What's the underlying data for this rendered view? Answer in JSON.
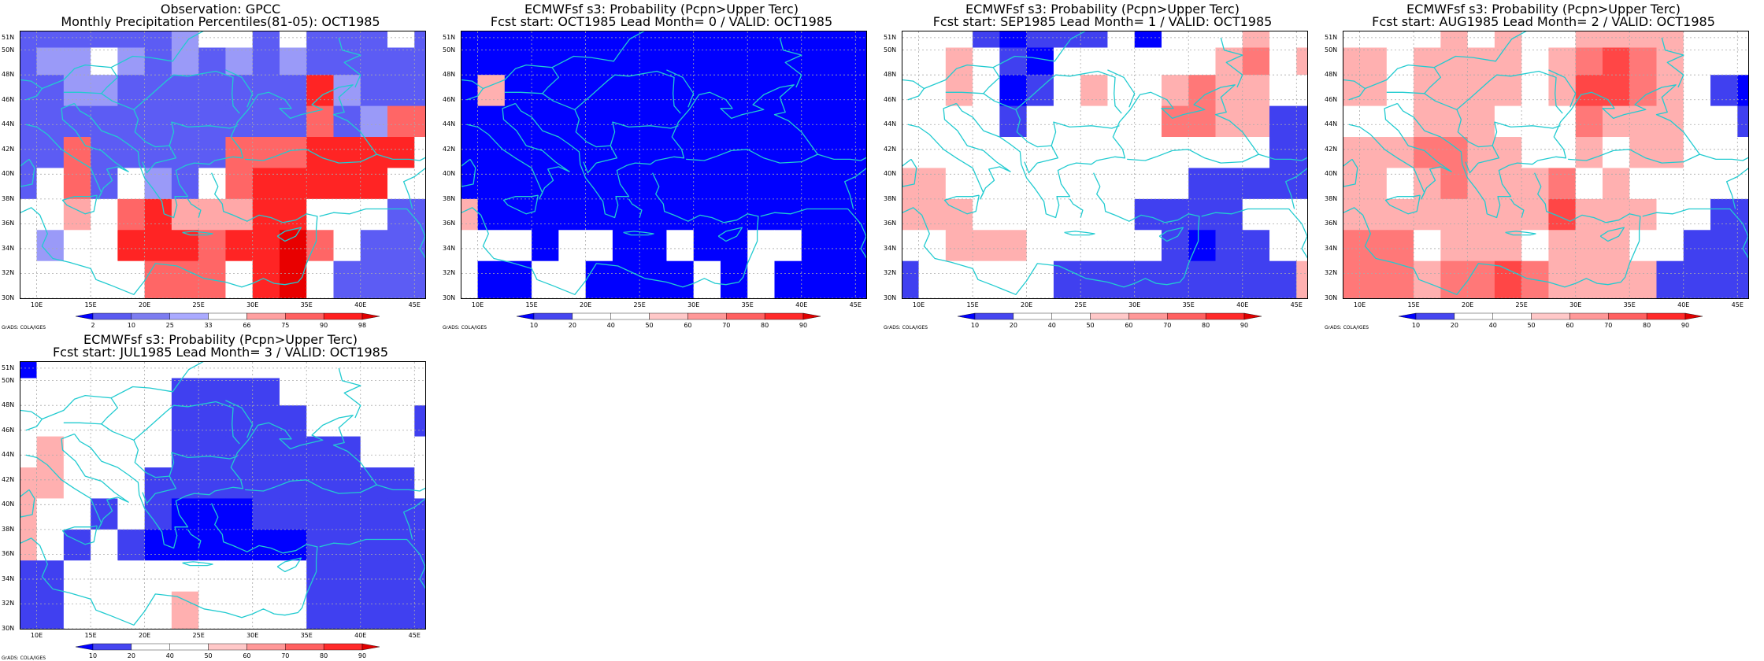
{
  "figure": {
    "grads_credit": "GrADS: COLA/IGES",
    "lat_labels": [
      "51N",
      "50N",
      "48N",
      "46N",
      "44N",
      "42N",
      "40N",
      "38N",
      "36N",
      "34N",
      "32N",
      "30N"
    ],
    "lon_labels": [
      "10E",
      "15E",
      "20E",
      "25E",
      "30E",
      "35E",
      "40E",
      "45E"
    ],
    "coast_color": "#22cbd0"
  },
  "chart_data": [
    {
      "type": "heatmap",
      "title": "Observation: GPCC",
      "subtitle": "Monthly Precipitation Percentiles(81-05): OCT1985",
      "x": [
        8.75,
        11.25,
        13.75,
        16.25,
        18.75,
        21.25,
        23.75,
        26.25,
        28.75,
        31.25,
        33.75,
        36.25,
        38.75,
        41.25,
        43.75,
        46.25
      ],
      "y": [
        50.75,
        49.25,
        46.75,
        44.25,
        41.75,
        39.25,
        36.75,
        34.25,
        31.75
      ],
      "xlim": [
        8.5,
        46.0
      ],
      "ylim": [
        30.0,
        51.5
      ],
      "colorbar": {
        "labels": [
          "2",
          "10",
          "25",
          "33",
          "66",
          "75",
          "90",
          "98"
        ],
        "colors": [
          "#0000ff",
          "#5a5af0",
          "#7c7cf0",
          "#aaaaff",
          "#ffffff",
          "#ffa0a0",
          "#ff6060",
          "#ff2020",
          "#e00000"
        ]
      },
      "values": [
        [
          10,
          10,
          10,
          10,
          20,
          20,
          30,
          33,
          40,
          20,
          33,
          20,
          10,
          20,
          33,
          10
        ],
        [
          10,
          30,
          30,
          33,
          30,
          20,
          30,
          20,
          30,
          20,
          30,
          20,
          20,
          20,
          20,
          10
        ],
        [
          20,
          10,
          30,
          30,
          10,
          20,
          20,
          20,
          20,
          20,
          20,
          95,
          30,
          20,
          20,
          10
        ],
        [
          20,
          20,
          10,
          20,
          20,
          20,
          20,
          20,
          20,
          20,
          20,
          78,
          20,
          30,
          80,
          80
        ],
        [
          20,
          20,
          80,
          20,
          20,
          20,
          20,
          20,
          80,
          80,
          80,
          90,
          90,
          90,
          90,
          50
        ],
        [
          20,
          50,
          80,
          20,
          50,
          30,
          20,
          50,
          80,
          90,
          90,
          90,
          90,
          90,
          50,
          50
        ],
        [
          50,
          50,
          70,
          50,
          80,
          95,
          70,
          70,
          70,
          95,
          95,
          50,
          50,
          50,
          20,
          20
        ],
        [
          50,
          30,
          50,
          50,
          95,
          90,
          90,
          85,
          90,
          95,
          99,
          85,
          50,
          10,
          10,
          10
        ],
        [
          50,
          50,
          50,
          50,
          50,
          85,
          85,
          80,
          50,
          95,
          99,
          50,
          10,
          10,
          10,
          10
        ]
      ]
    },
    {
      "type": "heatmap",
      "title": "ECMWFsf s3: Probability (Pcpn>Upper Terc)",
      "subtitle": "Fcst start: OCT1985  Lead Month= 0 / VALID: OCT1985",
      "x": [
        8.75,
        11.25,
        13.75,
        16.25,
        18.75,
        21.25,
        23.75,
        26.25,
        28.75,
        31.25,
        33.75,
        36.25,
        38.75,
        41.25,
        43.75,
        46.25
      ],
      "y": [
        50.75,
        49.25,
        46.75,
        44.25,
        41.75,
        39.25,
        36.75,
        34.25,
        31.75
      ],
      "xlim": [
        8.5,
        46.0
      ],
      "ylim": [
        30.0,
        51.5
      ],
      "colorbar": {
        "labels": [
          "10",
          "20",
          "40",
          "50",
          "60",
          "70",
          "80",
          "90"
        ],
        "colors": [
          "#0000ff",
          "#4646f0",
          "#ffffff",
          "#ffffff",
          "#ffc8c8",
          "#ff9898",
          "#ff6060",
          "#ff2a2a",
          "#e00000"
        ]
      },
      "values": [
        [
          5,
          5,
          5,
          5,
          5,
          5,
          5,
          5,
          5,
          5,
          5,
          5,
          5,
          5,
          5,
          5
        ],
        [
          5,
          5,
          5,
          5,
          5,
          5,
          5,
          5,
          5,
          5,
          5,
          5,
          5,
          5,
          5,
          5
        ],
        [
          5,
          55,
          5,
          5,
          5,
          5,
          5,
          5,
          5,
          5,
          5,
          5,
          5,
          5,
          5,
          5
        ],
        [
          5,
          5,
          5,
          5,
          5,
          5,
          5,
          5,
          5,
          5,
          5,
          5,
          5,
          5,
          5,
          5
        ],
        [
          5,
          5,
          5,
          5,
          5,
          5,
          5,
          5,
          5,
          5,
          5,
          5,
          5,
          5,
          5,
          5
        ],
        [
          5,
          5,
          5,
          5,
          5,
          5,
          5,
          5,
          5,
          5,
          5,
          5,
          5,
          5,
          5,
          5
        ],
        [
          50,
          5,
          5,
          5,
          5,
          5,
          5,
          5,
          5,
          5,
          5,
          5,
          5,
          5,
          5,
          5
        ],
        [
          40,
          40,
          40,
          5,
          40,
          40,
          5,
          5,
          40,
          5,
          5,
          40,
          40,
          5,
          5,
          5
        ],
        [
          40,
          5,
          5,
          40,
          40,
          5,
          5,
          5,
          5,
          40,
          5,
          40,
          5,
          5,
          5,
          5
        ]
      ]
    },
    {
      "type": "heatmap",
      "title": "ECMWFsf s3: Probability (Pcpn>Upper Terc)",
      "subtitle": "Fcst start: SEP1985  Lead Month= 1 / VALID: OCT1985",
      "x": [
        8.75,
        11.25,
        13.75,
        16.25,
        18.75,
        21.25,
        23.75,
        26.25,
        28.75,
        31.25,
        33.75,
        36.25,
        38.75,
        41.25,
        43.75,
        46.25
      ],
      "y": [
        50.75,
        49.25,
        46.75,
        44.25,
        41.75,
        39.25,
        36.75,
        34.25,
        31.75
      ],
      "xlim": [
        8.5,
        46.0
      ],
      "ylim": [
        30.0,
        51.5
      ],
      "colorbar": {
        "labels": [
          "10",
          "20",
          "40",
          "50",
          "60",
          "70",
          "80",
          "90"
        ],
        "colors": [
          "#0000ff",
          "#4646f0",
          "#ffffff",
          "#ffffff",
          "#ffc8c8",
          "#ff9898",
          "#ff6060",
          "#ff2a2a",
          "#e00000"
        ]
      },
      "values": [
        [
          40,
          40,
          40,
          15,
          5,
          15,
          15,
          15,
          40,
          5,
          40,
          40,
          40,
          55,
          40,
          40
        ],
        [
          40,
          40,
          55,
          40,
          15,
          5,
          40,
          40,
          40,
          40,
          40,
          40,
          55,
          65,
          40,
          55
        ],
        [
          40,
          40,
          55,
          40,
          5,
          15,
          40,
          55,
          40,
          40,
          55,
          65,
          55,
          55,
          40,
          40
        ],
        [
          40,
          40,
          40,
          40,
          15,
          40,
          40,
          40,
          40,
          40,
          65,
          65,
          55,
          55,
          15,
          15
        ],
        [
          40,
          40,
          40,
          40,
          40,
          40,
          40,
          40,
          40,
          40,
          40,
          40,
          40,
          40,
          15,
          15
        ],
        [
          55,
          55,
          40,
          40,
          40,
          40,
          40,
          40,
          40,
          40,
          40,
          15,
          15,
          15,
          15,
          15
        ],
        [
          55,
          55,
          55,
          40,
          40,
          40,
          40,
          40,
          40,
          15,
          15,
          15,
          15,
          40,
          40,
          40
        ],
        [
          40,
          40,
          55,
          55,
          55,
          40,
          40,
          40,
          40,
          40,
          15,
          5,
          15,
          15,
          40,
          40
        ],
        [
          15,
          40,
          40,
          40,
          40,
          40,
          15,
          15,
          15,
          15,
          15,
          15,
          15,
          15,
          15,
          55
        ]
      ]
    },
    {
      "type": "heatmap",
      "title": "ECMWFsf s3: Probability (Pcpn>Upper Terc)",
      "subtitle": "Fcst start: AUG1985  Lead Month= 2 / VALID: OCT1985",
      "x": [
        8.75,
        11.25,
        13.75,
        16.25,
        18.75,
        21.25,
        23.75,
        26.25,
        28.75,
        31.25,
        33.75,
        36.25,
        38.75,
        41.25,
        43.75,
        46.25
      ],
      "y": [
        50.75,
        49.25,
        46.75,
        44.25,
        41.75,
        39.25,
        36.75,
        34.25,
        31.75
      ],
      "xlim": [
        8.5,
        46.0
      ],
      "ylim": [
        30.0,
        51.5
      ],
      "colorbar": {
        "labels": [
          "10",
          "20",
          "40",
          "50",
          "60",
          "70",
          "80",
          "90"
        ],
        "colors": [
          "#0000ff",
          "#4646f0",
          "#ffffff",
          "#ffffff",
          "#ffc8c8",
          "#ff9898",
          "#ff6060",
          "#ff2a2a",
          "#e00000"
        ]
      },
      "values": [
        [
          40,
          40,
          40,
          40,
          55,
          40,
          55,
          40,
          40,
          55,
          55,
          55,
          55,
          40,
          40,
          40
        ],
        [
          55,
          55,
          40,
          55,
          55,
          55,
          55,
          40,
          55,
          65,
          75,
          65,
          55,
          40,
          40,
          40
        ],
        [
          55,
          55,
          40,
          55,
          55,
          55,
          55,
          40,
          55,
          75,
          75,
          65,
          55,
          40,
          15,
          5
        ],
        [
          40,
          40,
          40,
          55,
          55,
          55,
          40,
          40,
          40,
          65,
          55,
          55,
          55,
          40,
          40,
          15
        ],
        [
          55,
          55,
          55,
          65,
          65,
          55,
          55,
          40,
          40,
          55,
          40,
          55,
          55,
          40,
          40,
          40
        ],
        [
          55,
          55,
          40,
          55,
          65,
          55,
          55,
          55,
          65,
          40,
          55,
          40,
          40,
          40,
          40,
          40
        ],
        [
          55,
          55,
          55,
          55,
          55,
          55,
          55,
          55,
          75,
          55,
          55,
          55,
          40,
          40,
          15,
          15
        ],
        [
          65,
          65,
          65,
          40,
          55,
          55,
          55,
          40,
          55,
          55,
          55,
          40,
          40,
          15,
          15,
          15
        ],
        [
          65,
          65,
          65,
          55,
          65,
          65,
          75,
          65,
          55,
          55,
          55,
          55,
          15,
          15,
          15,
          15
        ]
      ]
    },
    {
      "type": "heatmap",
      "title": "ECMWFsf s3: Probability (Pcpn>Upper Terc)",
      "subtitle": "Fcst start: JUL1985  Lead Month= 3 / VALID: OCT1985",
      "x": [
        8.75,
        11.25,
        13.75,
        16.25,
        18.75,
        21.25,
        23.75,
        26.25,
        28.75,
        31.25,
        33.75,
        36.25,
        38.75,
        41.25,
        43.75,
        46.25
      ],
      "y": [
        50.75,
        49.25,
        46.75,
        44.25,
        41.75,
        39.25,
        36.75,
        34.25,
        31.75
      ],
      "xlim": [
        8.5,
        46.0
      ],
      "ylim": [
        30.0,
        51.5
      ],
      "colorbar": {
        "labels": [
          "10",
          "20",
          "40",
          "50",
          "60",
          "70",
          "80",
          "90"
        ],
        "colors": [
          "#0000ff",
          "#4646f0",
          "#ffffff",
          "#ffffff",
          "#ffc8c8",
          "#ff9898",
          "#ff6060",
          "#ff2a2a",
          "#e00000"
        ]
      },
      "values": [
        [
          5,
          40,
          40,
          40,
          40,
          40,
          40,
          40,
          40,
          40,
          40,
          40,
          40,
          40,
          40,
          40
        ],
        [
          40,
          40,
          40,
          40,
          40,
          40,
          15,
          15,
          15,
          15,
          40,
          40,
          40,
          40,
          40,
          40
        ],
        [
          40,
          40,
          40,
          40,
          40,
          40,
          15,
          15,
          15,
          15,
          15,
          40,
          40,
          40,
          40,
          15
        ],
        [
          40,
          55,
          40,
          40,
          40,
          40,
          15,
          15,
          15,
          15,
          15,
          15,
          15,
          40,
          40,
          40
        ],
        [
          55,
          55,
          40,
          40,
          40,
          15,
          15,
          15,
          15,
          15,
          15,
          15,
          15,
          15,
          15,
          40
        ],
        [
          55,
          40,
          40,
          15,
          40,
          15,
          5,
          5,
          5,
          15,
          15,
          15,
          15,
          15,
          15,
          15
        ],
        [
          55,
          40,
          15,
          40,
          15,
          5,
          5,
          5,
          5,
          5,
          5,
          15,
          15,
          15,
          15,
          15
        ],
        [
          15,
          15,
          40,
          40,
          40,
          40,
          40,
          40,
          40,
          40,
          40,
          15,
          15,
          15,
          15,
          15
        ],
        [
          15,
          15,
          40,
          40,
          40,
          40,
          55,
          40,
          40,
          40,
          40,
          15,
          15,
          15,
          15,
          15
        ]
      ]
    }
  ]
}
